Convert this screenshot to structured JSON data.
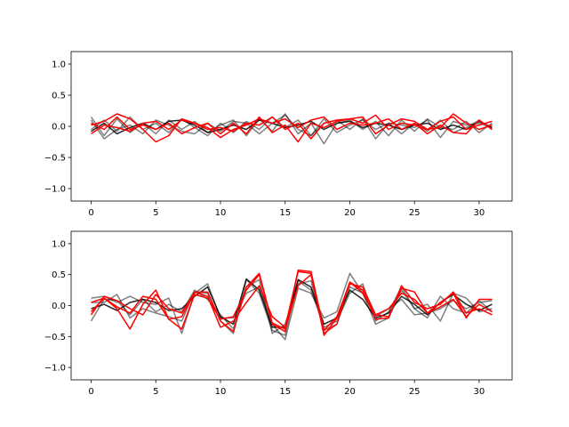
{
  "chart_data": [
    {
      "type": "line",
      "title": "",
      "xlabel": "",
      "ylabel": "",
      "xlim": [
        -1.55,
        32.55
      ],
      "ylim": [
        -1.2,
        1.2
      ],
      "xticks": [
        0,
        5,
        10,
        15,
        20,
        25,
        30
      ],
      "yticks": [
        -1.0,
        -0.5,
        0.0,
        0.5,
        1.0
      ],
      "xtick_labels": [
        "0",
        "5",
        "10",
        "15",
        "20",
        "25",
        "30"
      ],
      "ytick_labels": [
        "−1.0",
        "−0.5",
        "0.0",
        "0.5",
        "1.0"
      ],
      "grid": false,
      "x": [
        0,
        1,
        2,
        3,
        4,
        5,
        6,
        7,
        8,
        9,
        10,
        11,
        12,
        13,
        14,
        15,
        16,
        17,
        18,
        19,
        20,
        21,
        22,
        23,
        24,
        25,
        26,
        27,
        28,
        29,
        30,
        31
      ],
      "series": [
        {
          "color": "#000000",
          "opacity": 0.5,
          "values": [
            0.15,
            -0.15,
            0.12,
            -0.1,
            0.05,
            -0.12,
            0.1,
            -0.05,
            0.08,
            -0.1,
            0.02,
            0.1,
            -0.15,
            0.12,
            -0.08,
            0.2,
            -0.12,
            0.05,
            -0.28,
            0.05,
            0.1,
            -0.05,
            0.08,
            -0.15,
            0.1,
            -0.08,
            0.12,
            -0.02,
            -0.05,
            0.08,
            -0.1,
            0.05
          ]
        },
        {
          "color": "#000000",
          "opacity": 0.5,
          "values": [
            -0.05,
            0.1,
            -0.08,
            0.15,
            -0.05,
            0.05,
            -0.1,
            0.12,
            -0.02,
            -0.15,
            0.05,
            -0.1,
            0.08,
            -0.05,
            0.15,
            -0.02,
            0.1,
            -0.15,
            0.05,
            0.1,
            -0.05,
            0.12,
            -0.2,
            0.05,
            -0.12,
            0.05,
            -0.08,
            0.1,
            -0.1,
            -0.02,
            0.1,
            -0.05
          ]
        },
        {
          "color": "#000000",
          "opacity": 0.5,
          "values": [
            0.1,
            -0.2,
            -0.05,
            0.02,
            -0.12,
            0.1,
            0.02,
            -0.08,
            -0.12,
            0.05,
            -0.08,
            0.08,
            0.05,
            -0.12,
            0.05,
            0.18,
            -0.05,
            -0.15,
            0.12,
            -0.1,
            0.02,
            0.1,
            -0.05,
            0.05,
            0.02,
            -0.02,
            0.1,
            -0.18,
            0.08,
            0.02,
            0.05,
            -0.02
          ]
        },
        {
          "color": "#000000",
          "opacity": 0.85,
          "values": [
            -0.08,
            0.05,
            -0.12,
            -0.02,
            0.05,
            -0.05,
            0.08,
            0.1,
            0.02,
            -0.1,
            -0.05,
            0.02,
            -0.05,
            0.1,
            0.05,
            -0.02,
            0.02,
            0.08,
            -0.05,
            0.05,
            0.08,
            -0.02,
            0.05,
            0.02,
            -0.05,
            0.02,
            0.05,
            -0.05,
            0.02,
            -0.05,
            0.08,
            -0.02
          ]
        },
        {
          "color": "#ff0000",
          "opacity": 1,
          "values": [
            0.02,
            0.08,
            0.2,
            0.12,
            -0.05,
            -0.25,
            -0.15,
            0.12,
            0.05,
            -0.02,
            -0.18,
            -0.05,
            0.02,
            0.12,
            0.05,
            0.12,
            -0.02,
            0.1,
            0.15,
            -0.05,
            0.05,
            0.02,
            0.05,
            0.12,
            -0.05,
            0.05,
            -0.12,
            0.02,
            -0.1,
            -0.12,
            0.1,
            -0.05
          ]
        },
        {
          "color": "#ff0000",
          "opacity": 1,
          "values": [
            -0.12,
            0.02,
            -0.02,
            -0.08,
            0.05,
            0.08,
            -0.05,
            0.1,
            0.05,
            -0.05,
            -0.02,
            -0.08,
            0.05,
            0.02,
            0.15,
            -0.05,
            0.05,
            -0.2,
            0.05,
            0.1,
            0.12,
            0.15,
            -0.12,
            0.02,
            0.12,
            0.08,
            -0.05,
            -0.02,
            0.2,
            0.05,
            -0.05,
            0.02
          ]
        },
        {
          "color": "#ff0000",
          "opacity": 1,
          "values": [
            0.05,
            -0.05,
            0.15,
            -0.05,
            0.02,
            -0.05,
            0.05,
            -0.12,
            -0.02,
            0.05,
            -0.12,
            0.05,
            -0.12,
            0.15,
            -0.1,
            0.02,
            -0.25,
            0.05,
            -0.02,
            0.08,
            0.12,
            0.05,
            0.18,
            -0.05,
            0.05,
            0.02,
            -0.05,
            0.08,
            0.15,
            -0.05,
            0.02,
            0.08
          ]
        }
      ]
    },
    {
      "type": "line",
      "title": "",
      "xlabel": "",
      "ylabel": "",
      "xlim": [
        -1.55,
        32.55
      ],
      "ylim": [
        -1.2,
        1.2
      ],
      "xticks": [
        0,
        5,
        10,
        15,
        20,
        25,
        30
      ],
      "yticks": [
        -1.0,
        -0.5,
        0.0,
        0.5,
        1.0
      ],
      "xtick_labels": [
        "0",
        "5",
        "10",
        "15",
        "20",
        "25",
        "30"
      ],
      "ytick_labels": [
        "−1.0",
        "−0.5",
        "0.0",
        "0.5",
        "1.0"
      ],
      "grid": false,
      "x": [
        0,
        1,
        2,
        3,
        4,
        5,
        6,
        7,
        8,
        9,
        10,
        11,
        12,
        13,
        14,
        15,
        16,
        17,
        18,
        19,
        20,
        21,
        22,
        23,
        24,
        25,
        26,
        27,
        28,
        29,
        30,
        31
      ],
      "series": [
        {
          "color": "#000000",
          "opacity": 0.5,
          "values": [
            0.12,
            0.15,
            0.05,
            0.15,
            0.05,
            0.02,
            0.12,
            -0.45,
            0.2,
            0.35,
            -0.2,
            -0.2,
            0.2,
            0.3,
            -0.3,
            -0.55,
            0.28,
            0.2,
            -0.2,
            -0.1,
            0.52,
            0.2,
            -0.3,
            -0.2,
            0.25,
            -0.05,
            0.02,
            -0.25,
            0.2,
            0.12,
            -0.1,
            -0.05
          ]
        },
        {
          "color": "#000000",
          "opacity": 0.5,
          "values": [
            -0.25,
            0.1,
            0.08,
            -0.15,
            0.1,
            -0.1,
            0.02,
            -0.1,
            0.25,
            0.1,
            -0.15,
            -0.38,
            0.3,
            0.42,
            -0.45,
            -0.3,
            0.35,
            0.4,
            -0.4,
            -0.3,
            0.3,
            0.2,
            -0.18,
            -0.05,
            0.1,
            -0.15,
            -0.12,
            -0.05,
            0.08,
            -0.05,
            0.05,
            0.08
          ]
        },
        {
          "color": "#000000",
          "opacity": 0.5,
          "values": [
            0.05,
            0.05,
            0.18,
            -0.2,
            -0.05,
            -0.12,
            -0.18,
            -0.25,
            0.22,
            0.2,
            -0.25,
            -0.45,
            0.42,
            0.2,
            -0.4,
            -0.48,
            0.4,
            0.25,
            -0.35,
            -0.25,
            0.2,
            0.35,
            -0.25,
            -0.1,
            0.3,
            -0.05,
            -0.2,
            0.15,
            -0.05,
            -0.12,
            0.08,
            -0.1
          ]
        },
        {
          "color": "#000000",
          "opacity": 0.85,
          "values": [
            -0.05,
            0.02,
            -0.08,
            0.05,
            0.1,
            0.05,
            -0.08,
            -0.05,
            0.15,
            0.3,
            -0.18,
            -0.3,
            0.43,
            0.25,
            -0.35,
            -0.35,
            0.42,
            0.3,
            -0.3,
            -0.2,
            0.25,
            0.1,
            -0.2,
            -0.12,
            0.15,
            0.02,
            -0.15,
            0.05,
            0.18,
            0.02,
            -0.08,
            0.02
          ]
        },
        {
          "color": "#ff0000",
          "opacity": 1,
          "values": [
            -0.1,
            0.12,
            -0.05,
            -0.38,
            0.02,
            0.25,
            -0.22,
            -0.18,
            0.22,
            0.15,
            -0.35,
            -0.25,
            0.05,
            0.32,
            -0.18,
            -0.35,
            0.55,
            0.52,
            -0.48,
            -0.2,
            0.38,
            0.25,
            -0.22,
            -0.2,
            0.32,
            0.05,
            -0.05,
            0.02,
            0.22,
            -0.12,
            -0.05,
            -0.15
          ]
        },
        {
          "color": "#ff0000",
          "opacity": 1,
          "values": [
            0.05,
            0.12,
            -0.02,
            -0.12,
            0.15,
            0.1,
            -0.22,
            -0.38,
            0.18,
            0.12,
            -0.22,
            -0.18,
            0.25,
            0.5,
            -0.3,
            -0.42,
            0.57,
            0.55,
            -0.4,
            -0.18,
            0.35,
            0.3,
            -0.15,
            -0.18,
            0.28,
            0.22,
            -0.12,
            0.05,
            0.2,
            -0.2,
            0.1,
            0.1
          ]
        },
        {
          "color": "#ff0000",
          "opacity": 1,
          "values": [
            -0.15,
            0.15,
            0.08,
            -0.05,
            -0.15,
            0.18,
            -0.05,
            -0.12,
            0.22,
            0.22,
            -0.25,
            -0.42,
            0.3,
            0.52,
            -0.28,
            -0.38,
            0.32,
            0.5,
            -0.45,
            -0.3,
            0.38,
            0.2,
            -0.15,
            -0.05,
            0.2,
            0.1,
            -0.12,
            -0.02,
            0.1,
            -0.18,
            0.02,
            -0.1
          ]
        }
      ]
    }
  ]
}
